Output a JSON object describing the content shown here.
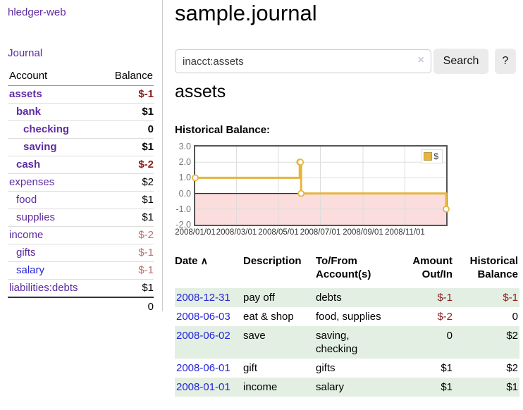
{
  "app_title": "hledger-web",
  "sidebar": {
    "journal_link": "Journal",
    "accounts": {
      "col_account": "Account",
      "col_balance": "Balance",
      "rows": [
        {
          "name": "assets",
          "balance": "$-1",
          "indent": 0,
          "bold": true,
          "neg": "strong"
        },
        {
          "name": "bank",
          "balance": "$1",
          "indent": 1,
          "bold": true
        },
        {
          "name": "checking",
          "balance": "0",
          "indent": 2,
          "bold": true
        },
        {
          "name": "saving",
          "balance": "$1",
          "indent": 2,
          "bold": true
        },
        {
          "name": "cash",
          "balance": "$-2",
          "indent": 1,
          "bold": true,
          "neg": "strong"
        },
        {
          "name": "expenses",
          "balance": "$2",
          "indent": 0,
          "bold": false
        },
        {
          "name": "food",
          "balance": "$1",
          "indent": 1,
          "bold": false
        },
        {
          "name": "supplies",
          "balance": "$1",
          "indent": 1,
          "bold": false
        },
        {
          "name": "income",
          "balance": "$-2",
          "indent": 0,
          "bold": false,
          "neg": "light"
        },
        {
          "name": "gifts",
          "balance": "$-1",
          "indent": 1,
          "bold": false,
          "neg": "light"
        },
        {
          "name": "salary",
          "balance": "$-1",
          "indent": 1,
          "bold": false,
          "neg": "light",
          "blue": true
        },
        {
          "name": "liabilities:debts",
          "balance": "$1",
          "indent": 0,
          "bold": false
        }
      ],
      "total": "0"
    }
  },
  "main": {
    "title": "sample.journal",
    "search": {
      "value": "inacct:assets",
      "clear_icon": "×",
      "search_button": "Search",
      "help_button": "?"
    },
    "account_heading": "assets",
    "chart_label": "Historical Balance:"
  },
  "chart_data": {
    "type": "line",
    "step": true,
    "title": "Historical Balance",
    "x_range": [
      "2008-01-01",
      "2008-12-31"
    ],
    "ylim": [
      -2,
      3
    ],
    "y_ticks": [
      {
        "v": 3,
        "label": "3.0"
      },
      {
        "v": 2,
        "label": "2.0"
      },
      {
        "v": 1,
        "label": "1.0"
      },
      {
        "v": 0,
        "label": "0.0"
      },
      {
        "v": -1,
        "label": "-1.0"
      },
      {
        "v": -2,
        "label": "-2.0"
      }
    ],
    "x_ticks": [
      {
        "date": "2008-01-01",
        "label": "2008/01/01"
      },
      {
        "date": "2008-03-01",
        "label": "2008/03/01"
      },
      {
        "date": "2008-05-01",
        "label": "2008/05/01"
      },
      {
        "date": "2008-07-01",
        "label": "2008/07/01"
      },
      {
        "date": "2008-09-01",
        "label": "2008/09/01"
      },
      {
        "date": "2008-11-01",
        "label": "2008/11/01"
      }
    ],
    "series": [
      {
        "name": "$",
        "color": "#e7b53c",
        "points": [
          {
            "date": "2008-01-01",
            "v": 1
          },
          {
            "date": "2008-06-01",
            "v": 2
          },
          {
            "date": "2008-06-02",
            "v": 2
          },
          {
            "date": "2008-06-03",
            "v": 0
          },
          {
            "date": "2008-12-31",
            "v": -1
          }
        ]
      }
    ],
    "legend": {
      "label": "$",
      "position": "top-right"
    },
    "colors": {
      "negative_fill": "#fbdddd",
      "zero_line": "#990000",
      "grid": "#dddddd",
      "border": "#555555"
    }
  },
  "register": {
    "headers": {
      "date": "Date",
      "sort_icon": "∧",
      "description": "Description",
      "accounts": "To/From Account(s)",
      "amount": "Amount Out/In",
      "balance": "Historical Balance"
    },
    "rows": [
      {
        "date": "2008-12-31",
        "description": "pay off",
        "accounts": "debts",
        "amount": "$-1",
        "balance": "$-1",
        "shaded": true
      },
      {
        "date": "2008-06-03",
        "description": "eat & shop",
        "accounts": "food, supplies",
        "amount": "$-2",
        "balance": "0",
        "shaded": false
      },
      {
        "date": "2008-06-02",
        "description": "save",
        "accounts": "saving, checking",
        "amount": "0",
        "balance": "$2",
        "shaded": true
      },
      {
        "date": "2008-06-01",
        "description": "gift",
        "accounts": "gifts",
        "amount": "$1",
        "balance": "$2",
        "shaded": false
      },
      {
        "date": "2008-01-01",
        "description": "income",
        "accounts": "salary",
        "amount": "$1",
        "balance": "$1",
        "shaded": true
      }
    ]
  },
  "colors": {
    "link_purple": "#5d2ca0",
    "link_blue": "#2525d8",
    "negative_strong": "#8b1c1c",
    "negative_light": "#c1706d",
    "row_green": "#e3efe3",
    "series_gold": "#e7b53c"
  }
}
